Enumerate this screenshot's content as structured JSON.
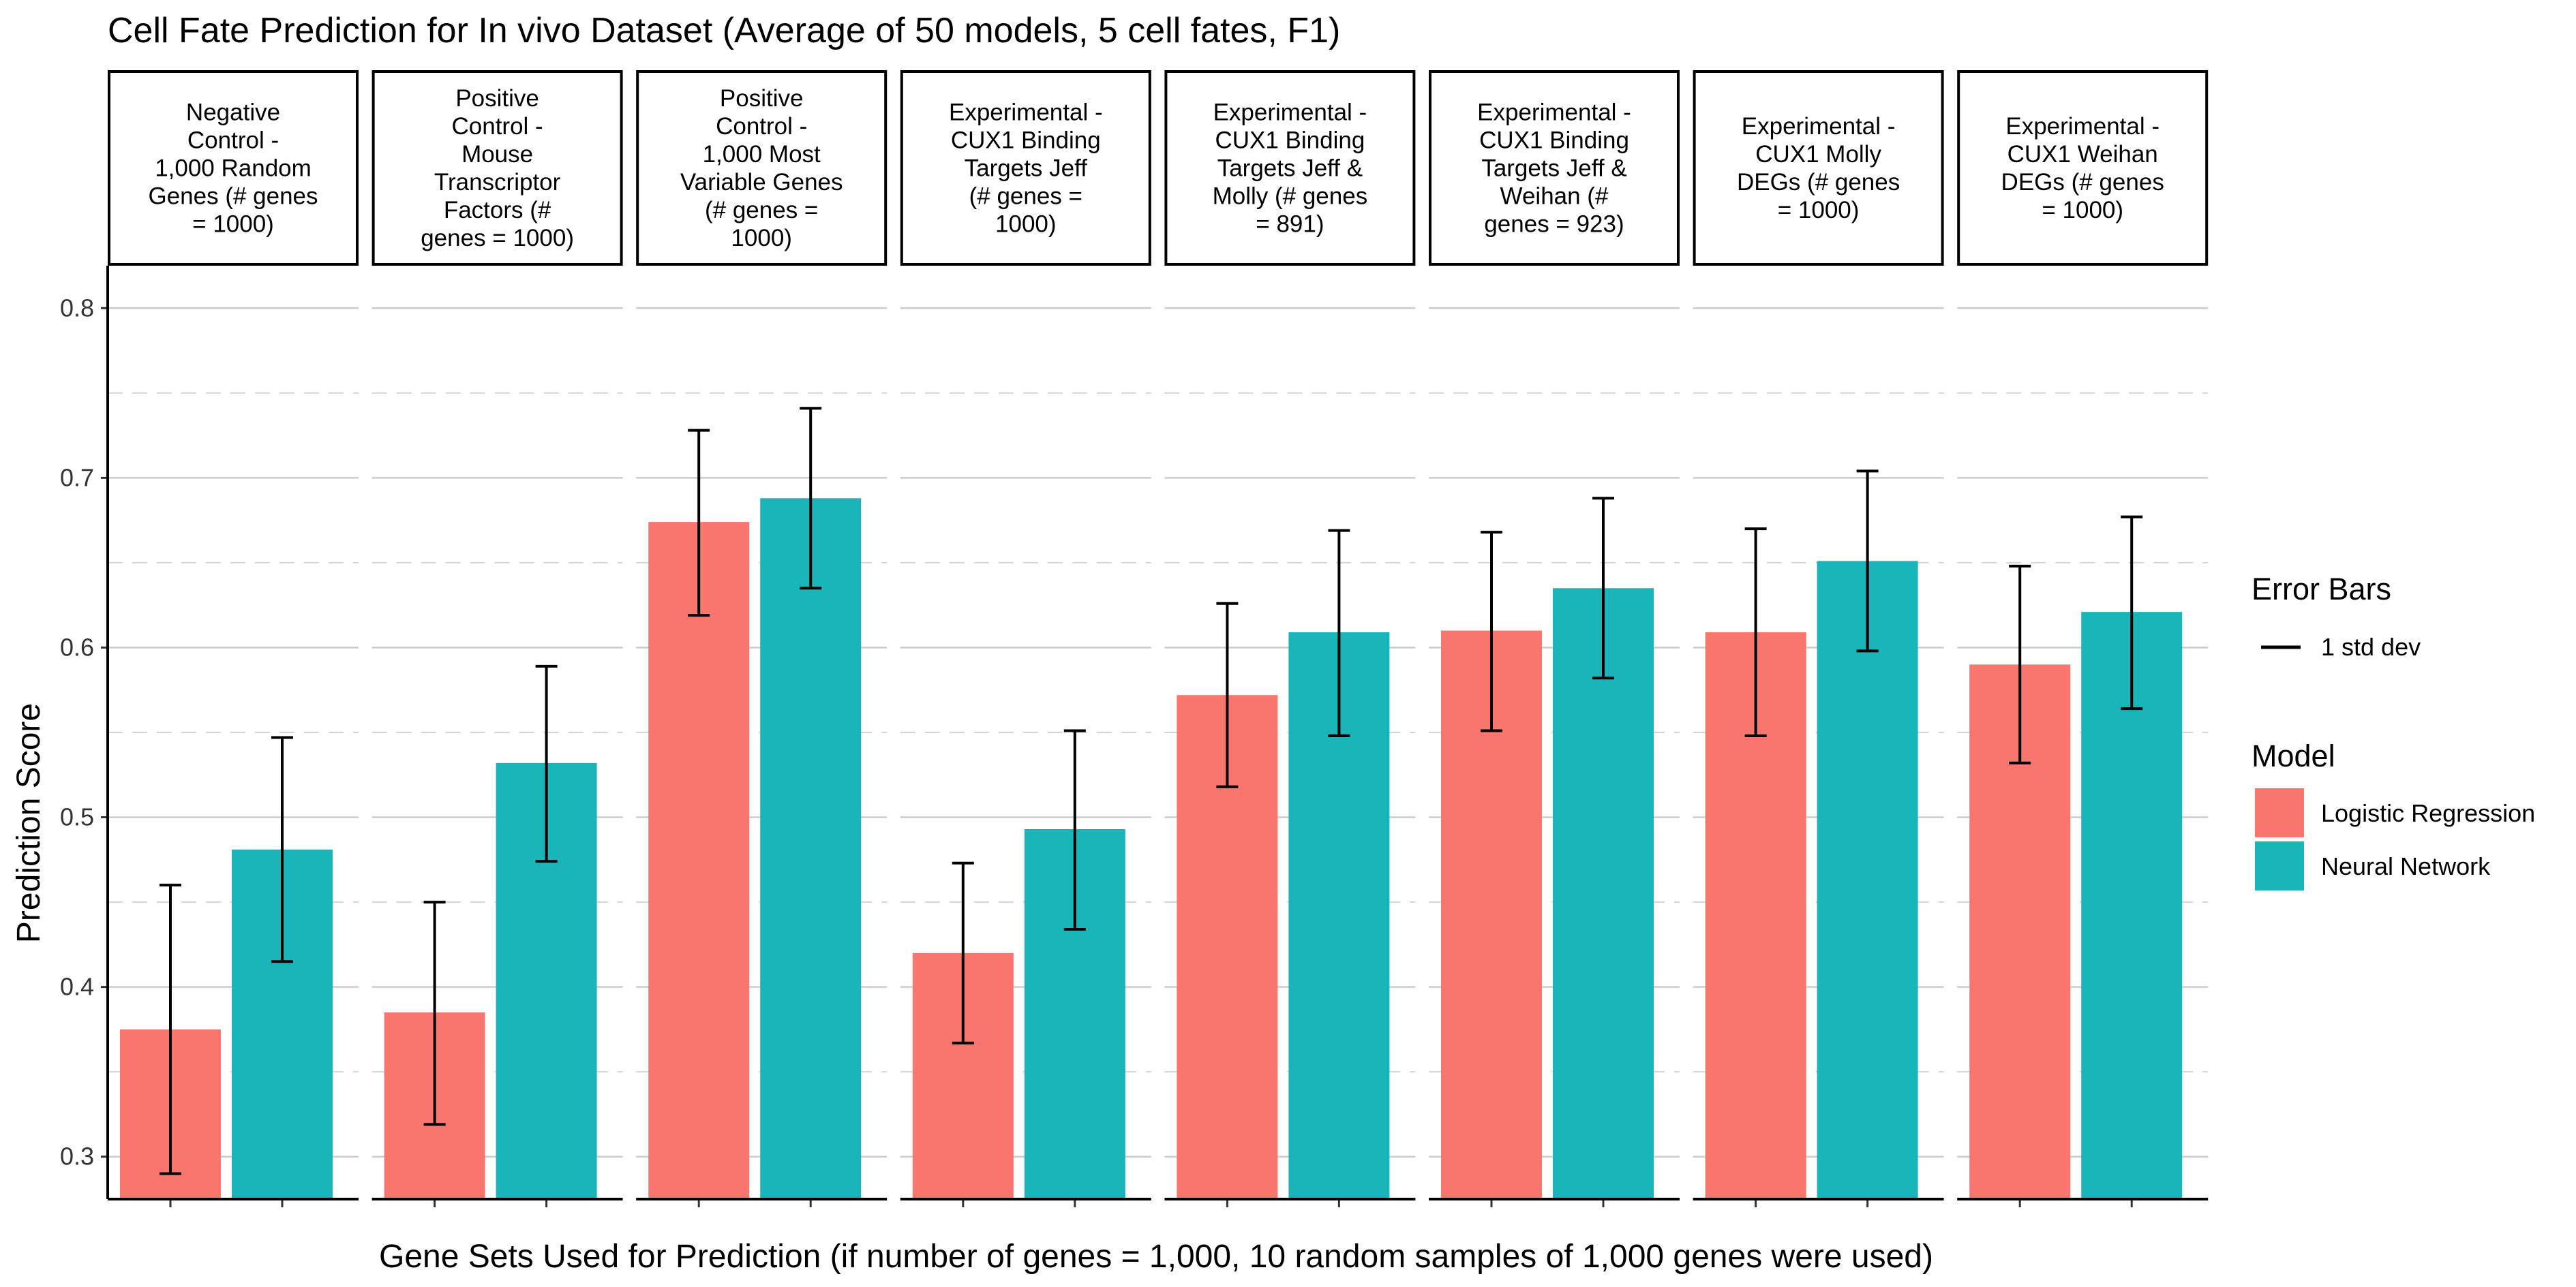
{
  "chart_data": {
    "type": "bar",
    "title": "Cell Fate Prediction for In vivo Dataset (Average of 50 models, 5 cell fates, F1)",
    "xlabel": "Gene Sets Used for Prediction (if number of genes = 1,000, 10 random samples of 1,000 genes were used)",
    "ylabel": "Prediction Score",
    "ylim": [
      0.275,
      0.825
    ],
    "yticks": [
      "0.3",
      "0.4",
      "0.5",
      "0.6",
      "0.7",
      "0.8"
    ],
    "grid": true,
    "legend_position": "right",
    "panels": [
      {
        "label_lines": [
          "Negative",
          "Control -",
          "1,000 Random",
          "Genes (# genes",
          "= 1000)"
        ]
      },
      {
        "label_lines": [
          "Positive",
          "Control -",
          "Mouse",
          "Transcriptor",
          "Factors (#",
          "genes = 1000)"
        ]
      },
      {
        "label_lines": [
          "Positive",
          "Control -",
          "1,000 Most",
          "Variable Genes",
          "(# genes =",
          "1000)"
        ]
      },
      {
        "label_lines": [
          "Experimental -",
          "CUX1 Binding",
          "Targets Jeff",
          "(# genes =",
          "1000)"
        ]
      },
      {
        "label_lines": [
          "Experimental -",
          "CUX1 Binding",
          "Targets Jeff &",
          "Molly (# genes",
          "= 891)"
        ]
      },
      {
        "label_lines": [
          "Experimental -",
          "CUX1 Binding",
          "Targets Jeff &",
          "Weihan (#",
          "genes = 923)"
        ]
      },
      {
        "label_lines": [
          "Experimental -",
          "CUX1 Molly",
          "DEGs (# genes",
          "= 1000)"
        ]
      },
      {
        "label_lines": [
          "Experimental -",
          "CUX1 Weihan",
          "DEGs (# genes",
          "= 1000)"
        ]
      }
    ],
    "series": [
      {
        "name": "Logistic Regression",
        "color": "#F8766D",
        "values": [
          0.375,
          0.385,
          0.674,
          0.42,
          0.572,
          0.61,
          0.609,
          0.59
        ],
        "err_low": [
          0.29,
          0.319,
          0.619,
          0.367,
          0.518,
          0.551,
          0.548,
          0.532
        ],
        "err_high": [
          0.46,
          0.45,
          0.728,
          0.473,
          0.626,
          0.668,
          0.67,
          0.648
        ]
      },
      {
        "name": "Neural Network",
        "color": "#19B5B8",
        "values": [
          0.481,
          0.532,
          0.688,
          0.493,
          0.609,
          0.635,
          0.651,
          0.621
        ],
        "err_low": [
          0.415,
          0.474,
          0.635,
          0.434,
          0.548,
          0.582,
          0.598,
          0.564
        ],
        "err_high": [
          0.547,
          0.589,
          0.741,
          0.551,
          0.669,
          0.688,
          0.704,
          0.677
        ]
      }
    ],
    "legend": {
      "error_bars_title": "Error Bars",
      "error_bars_label": "1 std dev",
      "model_title": "Model",
      "model_items": [
        "Logistic Regression",
        "Neural Network"
      ]
    }
  }
}
